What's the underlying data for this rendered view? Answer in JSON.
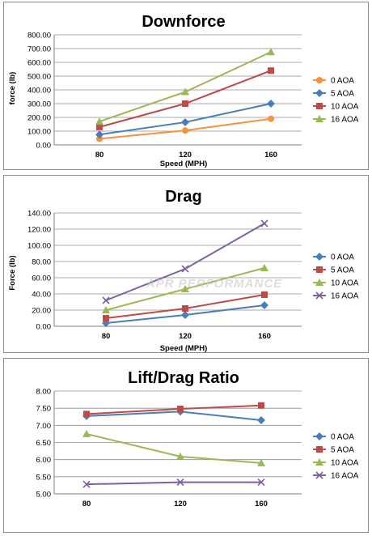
{
  "watermark": "APR PERFORMANCE",
  "colors": {
    "series": [
      "#f7923a",
      "#4a7ebb",
      "#be4b48",
      "#98b954",
      "#7d60a0"
    ]
  },
  "chart_data": [
    {
      "type": "line",
      "title": "Downforce",
      "xlabel": "Speed (MPH)",
      "ylabel": "force (lb)",
      "categories": [
        "80",
        "120",
        "160"
      ],
      "ylim": [
        0,
        800
      ],
      "yticks": [
        "0.00",
        "100.00",
        "200.00",
        "300.00",
        "400.00",
        "500.00",
        "600.00",
        "700.00",
        "800.00"
      ],
      "grid": true,
      "legend": "right",
      "series": [
        {
          "name": "0 AOA",
          "values": [
            45,
            105,
            190
          ],
          "color": "#f7923a",
          "marker": "circle"
        },
        {
          "name": "5 AOA",
          "values": [
            75,
            165,
            300
          ],
          "color": "#4a7ebb",
          "marker": "diamond"
        },
        {
          "name": "10 AOA",
          "values": [
            130,
            300,
            540
          ],
          "color": "#be4b48",
          "marker": "square"
        },
        {
          "name": "16 AOA",
          "values": [
            170,
            385,
            675
          ],
          "color": "#98b954",
          "marker": "triangle"
        }
      ]
    },
    {
      "type": "line",
      "title": "Drag",
      "xlabel": "Speed (MPH)",
      "ylabel": "Force (lb)",
      "categories": [
        "80",
        "120",
        "160"
      ],
      "ylim": [
        0,
        140
      ],
      "yticks": [
        "0.00",
        "20.00",
        "40.00",
        "60.00",
        "80.00",
        "100.00",
        "120.00",
        "140.00"
      ],
      "grid": true,
      "legend": "right",
      "series": [
        {
          "name": "0 AOA",
          "values": [
            4,
            14,
            26
          ],
          "color": "#4a7ebb",
          "marker": "diamond"
        },
        {
          "name": "5 AOA",
          "values": [
            10,
            22,
            39
          ],
          "color": "#be4b48",
          "marker": "square"
        },
        {
          "name": "10 AOA",
          "values": [
            20,
            46,
            72
          ],
          "color": "#98b954",
          "marker": "triangle"
        },
        {
          "name": "16 AOA",
          "values": [
            32,
            71,
            127
          ],
          "color": "#7d60a0",
          "marker": "x"
        }
      ]
    },
    {
      "type": "line",
      "title": "Lift/Drag Ratio",
      "xlabel": "Speed (MPH)",
      "ylabel": "",
      "categories": [
        "80",
        "120",
        "160"
      ],
      "ylim": [
        5,
        8
      ],
      "yticks": [
        "5.00",
        "5.50",
        "6.00",
        "6.50",
        "7.00",
        "7.50",
        "8.00"
      ],
      "grid": true,
      "legend": "right",
      "series": [
        {
          "name": "0 AOA",
          "values": [
            7.27,
            7.4,
            7.15
          ],
          "color": "#4a7ebb",
          "marker": "diamond"
        },
        {
          "name": "5 AOA",
          "values": [
            7.33,
            7.48,
            7.58
          ],
          "color": "#be4b48",
          "marker": "square"
        },
        {
          "name": "10 AOA",
          "values": [
            6.75,
            6.09,
            5.9
          ],
          "color": "#98b954",
          "marker": "triangle"
        },
        {
          "name": "16 AOA",
          "values": [
            5.28,
            5.34,
            5.34
          ],
          "color": "#7d60a0",
          "marker": "x"
        }
      ]
    }
  ]
}
